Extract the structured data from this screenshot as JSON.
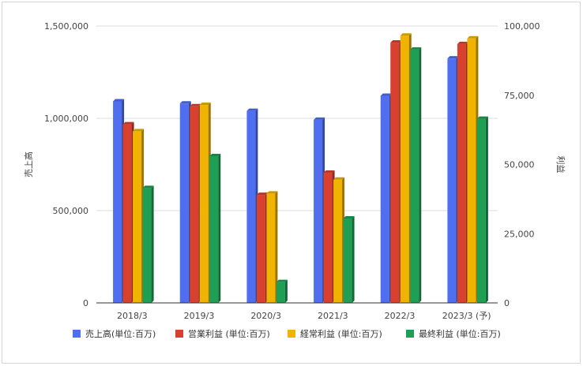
{
  "chart_data": {
    "type": "bar",
    "categories": [
      "2018/3",
      "2019/3",
      "2020/3",
      "2021/3",
      "2022/3",
      "2023/3 (予)"
    ],
    "left_axis": {
      "label": "売上高",
      "ylim": [
        0,
        1500000
      ],
      "ticks": [
        0,
        500000,
        1000000,
        1500000
      ],
      "tick_labels": [
        "0",
        "500,000",
        "1,000,000",
        "1,500,000"
      ]
    },
    "right_axis": {
      "label": "利益",
      "ylim": [
        0,
        100000
      ],
      "ticks": [
        0,
        25000,
        50000,
        75000,
        100000
      ],
      "tick_labels": [
        "0",
        "25,000",
        "50,000",
        "75,000",
        "100,000"
      ]
    },
    "series": [
      {
        "name": "売上高(単位:百万)",
        "axis": "left",
        "color": "#4f6ef0",
        "values": [
          1092000,
          1080000,
          1040000,
          992000,
          1122000,
          1324000
        ]
      },
      {
        "name": "営業利益 (単位:百万)",
        "axis": "right",
        "color": "#d9412f",
        "values": [
          64500,
          71000,
          39000,
          47000,
          94000,
          93500
        ]
      },
      {
        "name": "経常利益 (単位:百万)",
        "axis": "right",
        "color": "#f0b300",
        "values": [
          62000,
          71500,
          39500,
          44500,
          96500,
          95500
        ]
      },
      {
        "name": "最終利益 (単位:百万)",
        "axis": "right",
        "color": "#1f9e55",
        "values": [
          41500,
          53000,
          7500,
          30500,
          91500,
          66500
        ]
      }
    ],
    "grid": true,
    "legend_position": "bottom"
  }
}
